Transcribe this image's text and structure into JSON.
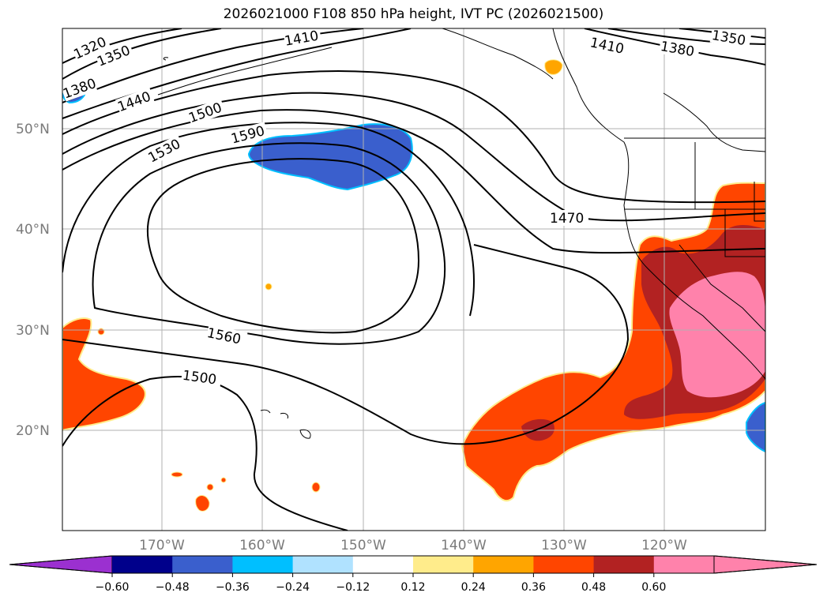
{
  "title": "2026021000 F108 850 hPa height, IVT PC (2026021500)",
  "map": {
    "lat_labels": [
      "50°N",
      "40°N",
      "30°N",
      "20°N"
    ],
    "lon_labels": [
      "170°W",
      "160°W",
      "150°W",
      "140°W",
      "130°W",
      "120°W"
    ],
    "contour_labels": [
      "1320",
      "1350",
      "1380",
      "1410",
      "1440",
      "1500",
      "1530",
      "1590",
      "1470",
      "1560",
      "1500",
      "1410",
      "1380",
      "1350"
    ]
  },
  "colorbar": {
    "ticks": [
      "−0.60",
      "−0.48",
      "−0.36",
      "−0.24",
      "−0.12",
      "0.12",
      "0.24",
      "0.36",
      "0.48",
      "0.60"
    ],
    "colors": {
      "under": "#9b30d0",
      "bins": [
        "#00008b",
        "#3a5fcd",
        "#00bfff",
        "#b0e2ff",
        "#ffffff",
        "#ffec8b",
        "#ffa500",
        "#ff4500",
        "#b22222",
        "#ff82ab"
      ],
      "over": "#ff82ab"
    }
  }
}
